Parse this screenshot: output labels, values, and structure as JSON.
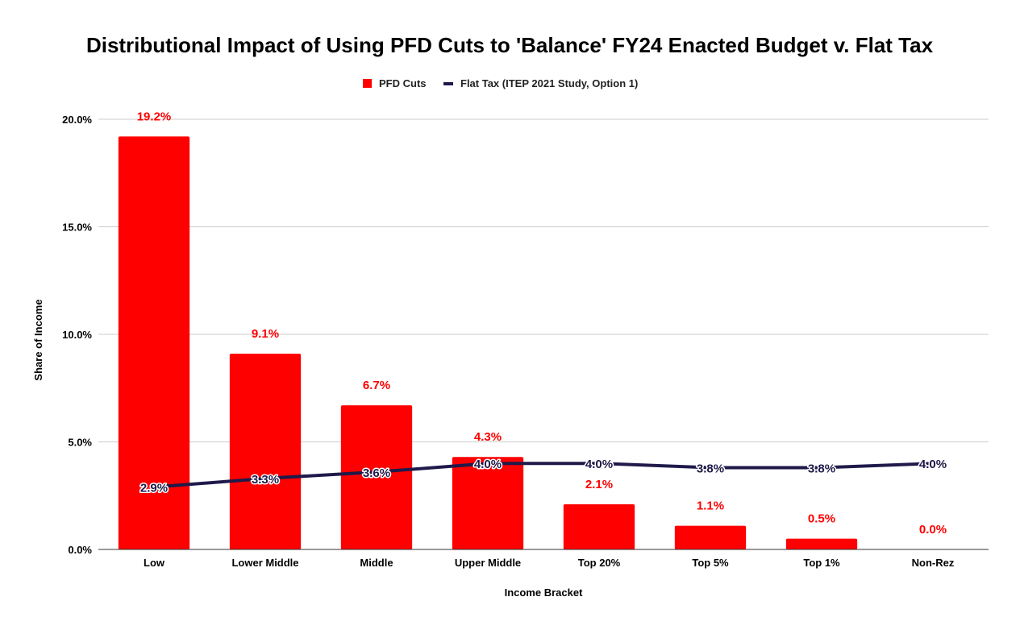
{
  "chart_data": {
    "type": "bar",
    "title": "Distributional Impact of Using PFD Cuts to 'Balance' FY24 Enacted Budget v. Flat Tax",
    "xlabel": "Income Bracket",
    "ylabel": "Share of Income",
    "ylim": [
      0,
      20
    ],
    "yticks": [
      "0.0%",
      "5.0%",
      "10.0%",
      "15.0%",
      "20.0%"
    ],
    "ytick_values": [
      0,
      5,
      10,
      15,
      20
    ],
    "grid": true,
    "legend_position": "top",
    "categories": [
      "Low",
      "Lower Middle",
      "Middle",
      "Upper Middle",
      "Top 20%",
      "Top 5%",
      "Top 1%",
      "Non-Rez"
    ],
    "series": [
      {
        "name": "PFD Cuts",
        "kind": "bar",
        "color": "#ff0000",
        "values": [
          19.2,
          9.1,
          6.7,
          4.3,
          2.1,
          1.1,
          0.5,
          0.0
        ],
        "labels": [
          "19.2%",
          "9.1%",
          "6.7%",
          "4.3%",
          "2.1%",
          "1.1%",
          "0.5%",
          "0.0%"
        ]
      },
      {
        "name": "Flat Tax (ITEP 2021 Study, Option 1)",
        "kind": "line",
        "color": "#1f1a4a",
        "values": [
          2.9,
          3.3,
          3.6,
          4.0,
          4.0,
          3.8,
          3.8,
          4.0
        ],
        "labels": [
          "2.9%",
          "3.3%",
          "3.6%",
          "4.0%",
          "4.0%",
          "3.8%",
          "3.8%",
          "4.0%"
        ]
      }
    ]
  }
}
